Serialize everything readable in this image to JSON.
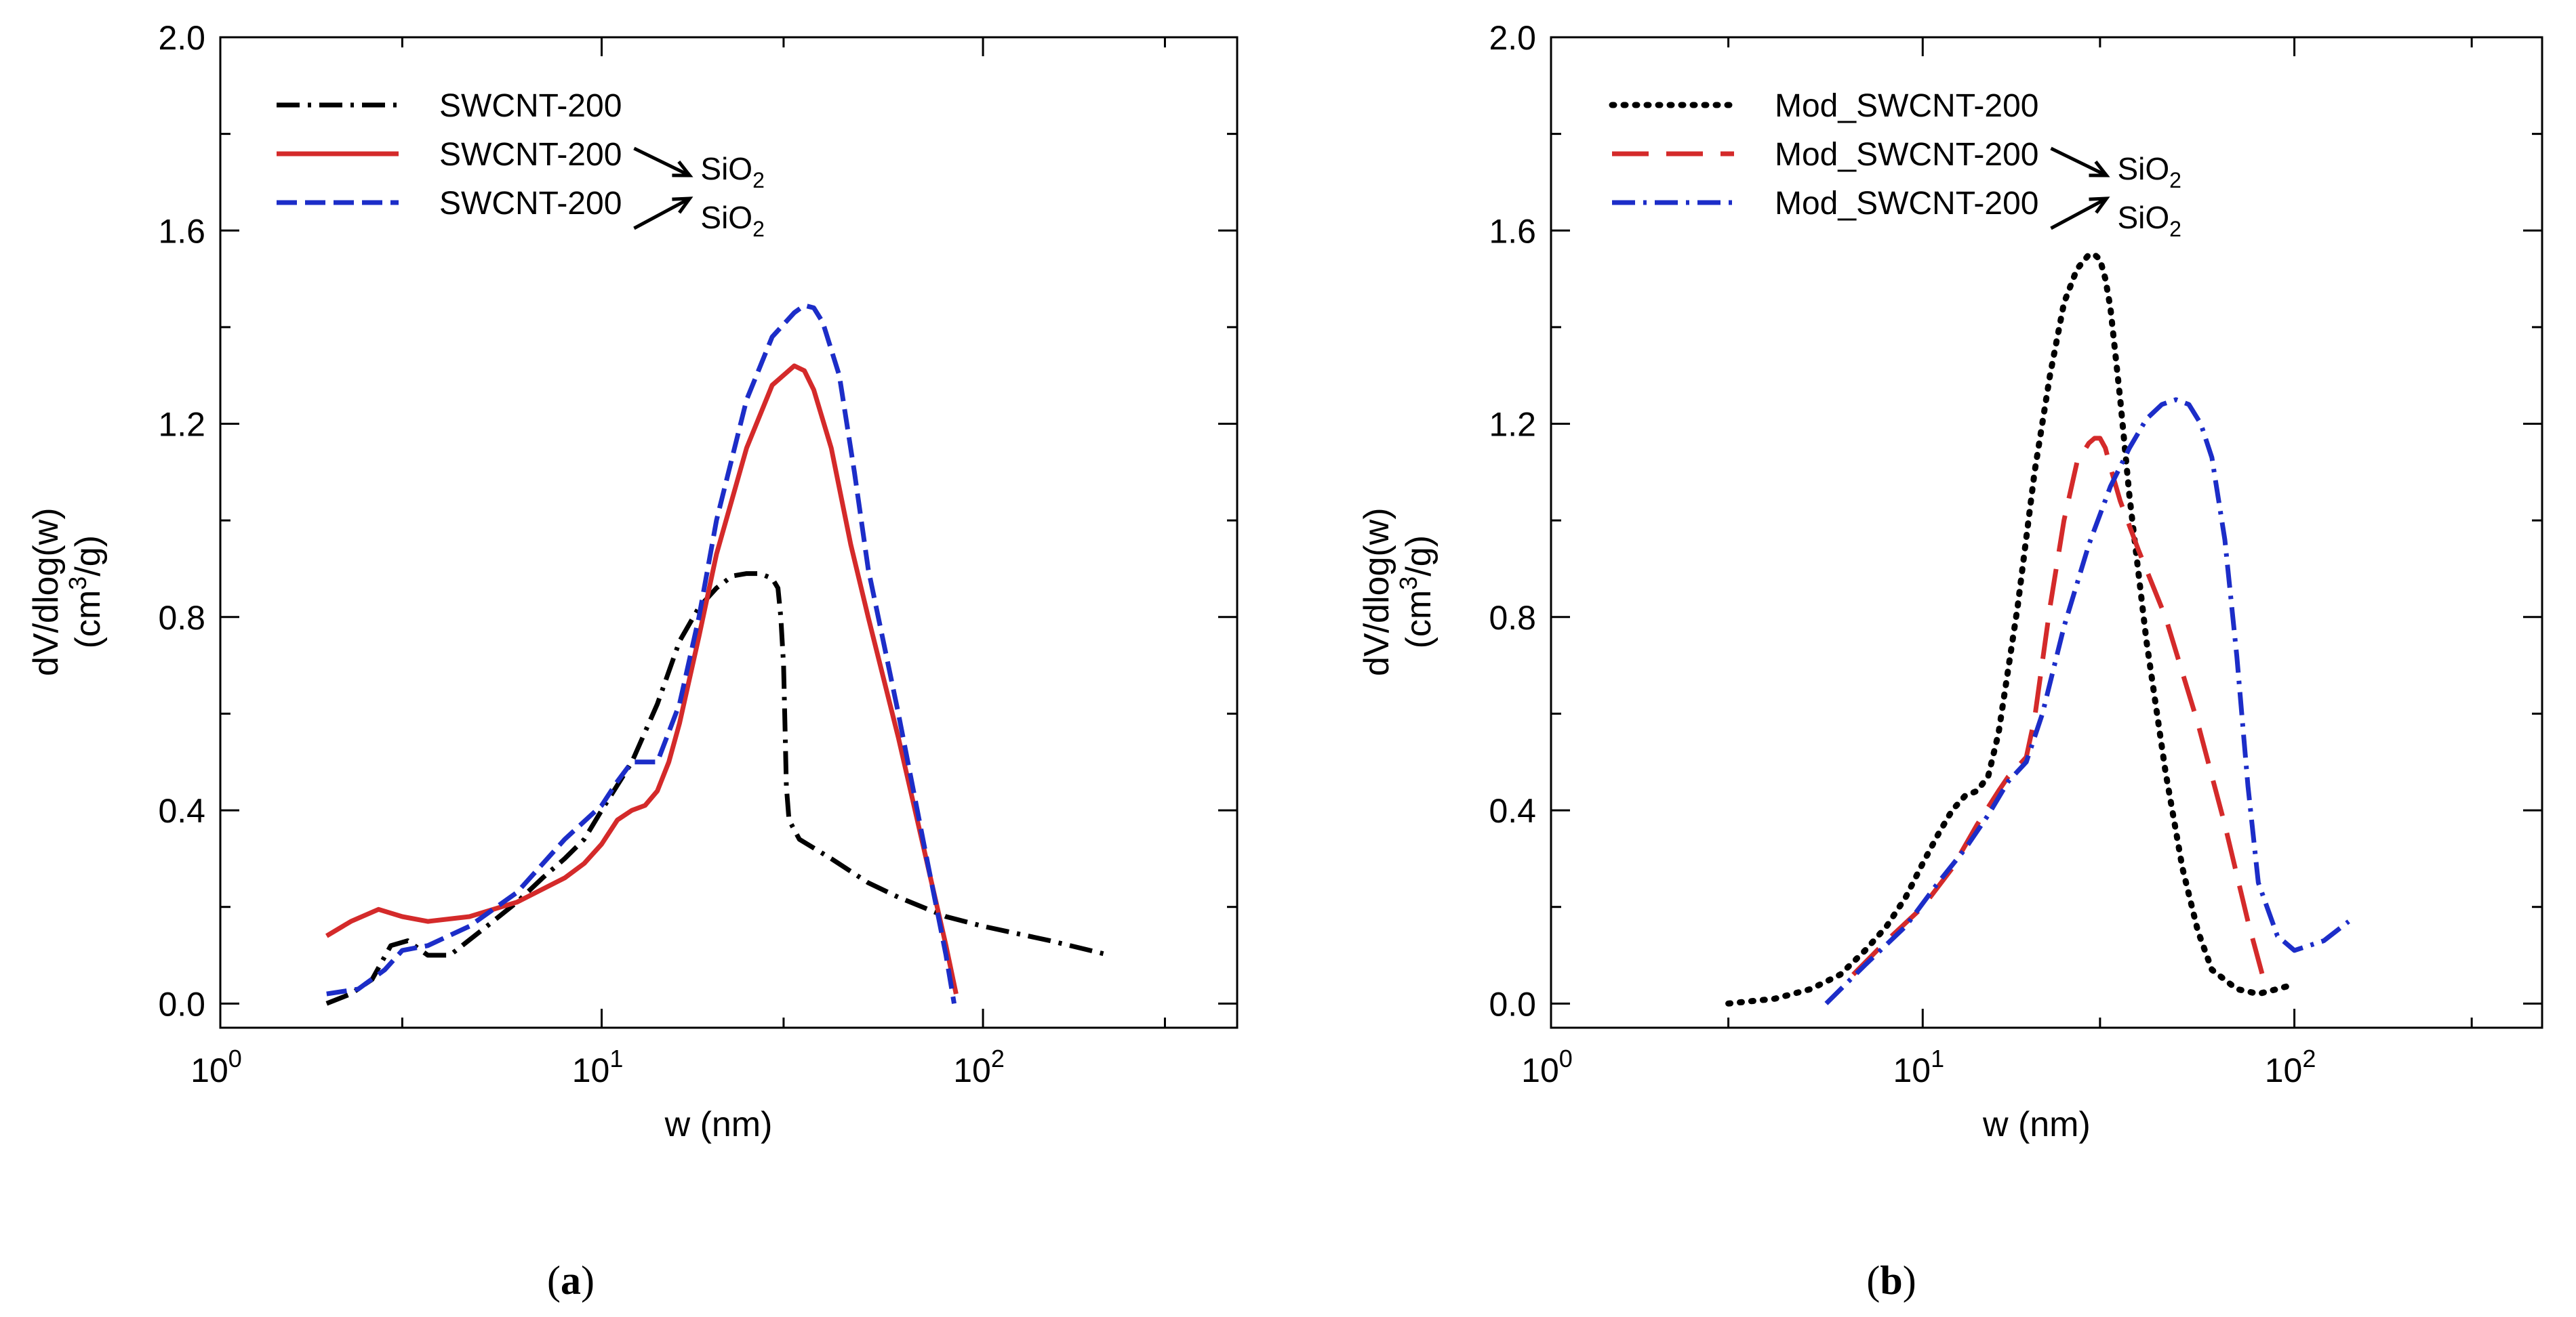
{
  "chart_data": [
    {
      "type": "line",
      "panel_label": "a",
      "xlabel": "w (nm)",
      "ylabel": "dV/dlog(w)",
      "ylabel_units": {
        "prefix": "(cm",
        "sup": "3",
        "suffix": "/g)"
      },
      "xscale": "log",
      "xlim": [
        1,
        464
      ],
      "ylim": [
        -0.05,
        2.0
      ],
      "xticks": [
        {
          "value": 1,
          "base": "10",
          "exp": "0"
        },
        {
          "value": 10,
          "base": "10",
          "exp": "1"
        },
        {
          "value": 100,
          "base": "10",
          "exp": "2"
        }
      ],
      "yticks": [
        {
          "value": 0.0,
          "label": "0.0"
        },
        {
          "value": 0.4,
          "label": "0.4"
        },
        {
          "value": 0.8,
          "label": "0.8"
        },
        {
          "value": 1.2,
          "label": "1.2"
        },
        {
          "value": 1.6,
          "label": "1.6"
        },
        {
          "value": 2.0,
          "label": "2.0"
        }
      ],
      "legend_position": "top-left",
      "series": [
        {
          "name": "SWCNT-200",
          "arrow": "",
          "suffix_base": "",
          "suffix_sub": "",
          "color": "#000000",
          "style": "dashdot",
          "x": [
            1.9,
            2.2,
            2.5,
            2.8,
            3.1,
            3.5,
            4.0,
            5.0,
            6.0,
            7.0,
            8.0,
            9.0,
            10.0,
            12.0,
            14.0,
            16.0,
            18.0,
            20.0,
            22.0,
            24.0,
            26.0,
            28.0,
            29.0,
            29.5,
            30.0,
            30.3,
            30.5,
            31.0,
            33.0,
            40.0,
            50.0,
            60.0,
            80.0,
            100.0,
            150.0,
            215.0
          ],
          "y": [
            0.0,
            0.02,
            0.05,
            0.12,
            0.13,
            0.1,
            0.1,
            0.16,
            0.21,
            0.26,
            0.3,
            0.34,
            0.4,
            0.5,
            0.62,
            0.75,
            0.82,
            0.86,
            0.885,
            0.89,
            0.89,
            0.88,
            0.86,
            0.8,
            0.7,
            0.55,
            0.45,
            0.38,
            0.34,
            0.3,
            0.25,
            0.22,
            0.18,
            0.16,
            0.13,
            0.1
          ]
        },
        {
          "name": "SWCNT-200",
          "arrow": "down",
          "suffix_base": "SiO",
          "suffix_sub": "2",
          "color": "#d42a2a",
          "style": "solid",
          "x": [
            1.9,
            2.2,
            2.6,
            3.0,
            3.5,
            4.5,
            6.0,
            8.0,
            9.0,
            10.0,
            11.0,
            12.0,
            13.0,
            14.0,
            15.0,
            16.0,
            18.0,
            20.0,
            24.0,
            28.0,
            32.0,
            34.0,
            36.0,
            40.0,
            45.0,
            50.0,
            60.0,
            70.0,
            80.0,
            85.0
          ],
          "y": [
            0.14,
            0.17,
            0.195,
            0.18,
            0.17,
            0.18,
            0.21,
            0.26,
            0.29,
            0.33,
            0.38,
            0.4,
            0.41,
            0.44,
            0.5,
            0.58,
            0.76,
            0.93,
            1.15,
            1.28,
            1.32,
            1.31,
            1.27,
            1.15,
            0.95,
            0.8,
            0.55,
            0.32,
            0.12,
            0.02
          ]
        },
        {
          "name": "SWCNT-200",
          "arrow": "up",
          "suffix_base": "SiO",
          "suffix_sub": "2",
          "color": "#1c2dc8",
          "style": "dashed",
          "x": [
            1.9,
            2.3,
            2.7,
            3.0,
            3.5,
            4.5,
            6.0,
            8.0,
            10.0,
            11.0,
            12.0,
            13.0,
            14.0,
            16.0,
            18.0,
            20.0,
            24.0,
            28.0,
            32.0,
            34.0,
            36.0,
            38.0,
            42.0,
            46.0,
            50.0,
            60.0,
            70.0,
            80.0,
            84.0
          ],
          "y": [
            0.02,
            0.03,
            0.07,
            0.11,
            0.12,
            0.16,
            0.23,
            0.34,
            0.41,
            0.46,
            0.5,
            0.5,
            0.5,
            0.62,
            0.8,
            1.0,
            1.25,
            1.38,
            1.43,
            1.445,
            1.44,
            1.41,
            1.3,
            1.1,
            0.9,
            0.6,
            0.33,
            0.1,
            0.0
          ]
        }
      ]
    },
    {
      "type": "line",
      "panel_label": "b",
      "xlabel": "w (nm)",
      "ylabel": "dV/dlog(w)",
      "ylabel_units": {
        "prefix": "(cm",
        "sup": "3",
        "suffix": "/g)"
      },
      "xscale": "log",
      "xlim": [
        1,
        464
      ],
      "ylim": [
        -0.05,
        2.0
      ],
      "xticks": [
        {
          "value": 1,
          "base": "10",
          "exp": "0"
        },
        {
          "value": 10,
          "base": "10",
          "exp": "1"
        },
        {
          "value": 100,
          "base": "10",
          "exp": "2"
        }
      ],
      "yticks": [
        {
          "value": 0.0,
          "label": "0.0"
        },
        {
          "value": 0.4,
          "label": "0.4"
        },
        {
          "value": 0.8,
          "label": "0.8"
        },
        {
          "value": 1.2,
          "label": "1.2"
        },
        {
          "value": 1.6,
          "label": "1.6"
        },
        {
          "value": 2.0,
          "label": "2.0"
        }
      ],
      "legend_position": "top-left",
      "series": [
        {
          "name": "Mod_SWCNT-200",
          "arrow": "",
          "suffix_base": "",
          "suffix_sub": "",
          "color": "#000000",
          "style": "dotted",
          "x": [
            3.0,
            4.0,
            5.0,
            6.0,
            7.0,
            8.0,
            9.0,
            10.0,
            11.0,
            12.0,
            13.0,
            14.0,
            15.0,
            16.0,
            18.0,
            20.0,
            22.0,
            24.0,
            26.0,
            28.0,
            29.0,
            30.0,
            31.0,
            32.0,
            34.0,
            36.0,
            40.0,
            45.0,
            50.0,
            55.0,
            60.0,
            70.0,
            80.0,
            90.0,
            100.0
          ],
          "y": [
            0.0,
            0.01,
            0.03,
            0.06,
            0.11,
            0.16,
            0.22,
            0.29,
            0.35,
            0.4,
            0.43,
            0.44,
            0.47,
            0.56,
            0.82,
            1.1,
            1.3,
            1.45,
            1.52,
            1.55,
            1.55,
            1.54,
            1.5,
            1.44,
            1.25,
            1.05,
            0.75,
            0.48,
            0.28,
            0.15,
            0.07,
            0.03,
            0.02,
            0.03,
            0.04
          ]
        },
        {
          "name": "Mod_SWCNT-200",
          "arrow": "down",
          "suffix_base": "SiO",
          "suffix_sub": "2",
          "color": "#d42a2a",
          "style": "longdash",
          "x": [
            6.5,
            8.0,
            10.0,
            12.0,
            14.0,
            16.0,
            17.0,
            18.0,
            19.0,
            20.0,
            22.0,
            24.0,
            26.0,
            28.0,
            29.0,
            30.0,
            31.0,
            32.0,
            34.0,
            38.0,
            45.0,
            55.0,
            65.0,
            75.0,
            82.0
          ],
          "y": [
            0.06,
            0.13,
            0.2,
            0.28,
            0.37,
            0.44,
            0.47,
            0.49,
            0.51,
            0.59,
            0.82,
            1.0,
            1.12,
            1.16,
            1.17,
            1.17,
            1.15,
            1.11,
            1.04,
            0.94,
            0.8,
            0.58,
            0.37,
            0.17,
            0.06
          ]
        },
        {
          "name": "Mod_SWCNT-200",
          "arrow": "up",
          "suffix_base": "SiO",
          "suffix_sub": "2",
          "color": "#1c2dc8",
          "style": "dashdot",
          "x": [
            5.5,
            7.0,
            9.0,
            11.0,
            13.0,
            15.0,
            17.0,
            19.0,
            21.0,
            24.0,
            28.0,
            32.0,
            36.0,
            40.0,
            44.0,
            48.0,
            52.0,
            56.0,
            60.0,
            65.0,
            70.0,
            75.0,
            80.0,
            90.0,
            100.0,
            120.0,
            140.0
          ],
          "y": [
            0.0,
            0.08,
            0.16,
            0.25,
            0.32,
            0.39,
            0.46,
            0.5,
            0.6,
            0.78,
            0.95,
            1.07,
            1.15,
            1.21,
            1.24,
            1.25,
            1.24,
            1.2,
            1.13,
            0.96,
            0.72,
            0.45,
            0.25,
            0.14,
            0.11,
            0.13,
            0.17
          ]
        }
      ]
    }
  ]
}
